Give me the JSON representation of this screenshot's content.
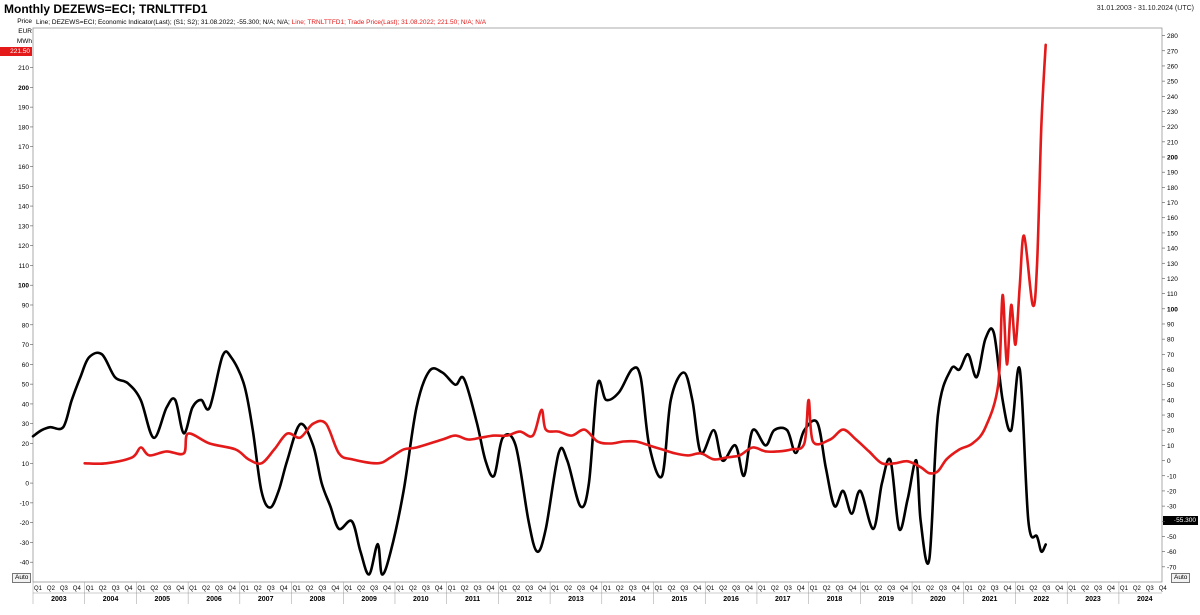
{
  "header": {
    "title": "Monthly DEZEWS=ECI; TRNLTTFD1",
    "date_range": "31.01.2003 - 31.10.2024 (UTC)",
    "legend_black": "Line; DEZEWS=ECI; Economic Indicator(Last); (S1; S2); 31.08.2022; -55.300; N/A; N/A;",
    "legend_red": "Line; TRNLTTFD1; Trade Price(Last); 31.08.2022; 221.50; N/A; N/A"
  },
  "left_axis": {
    "units": [
      "Price",
      "EUR",
      "MWh"
    ],
    "badge": "221.50",
    "badge_color": "#e41a1a",
    "auto_label": "Auto"
  },
  "right_axis": {
    "badge": "-55.300",
    "badge_color": "#000000",
    "auto_label": "Auto"
  },
  "colors": {
    "economic_indicator": "#000000",
    "trade_price": "#e41a1a",
    "grid": "#e6e6e6"
  },
  "chart_data": {
    "type": "line",
    "title": "Monthly DEZEWS=ECI; TRNLTTFD1",
    "grid": false,
    "legend_placement": "top-left",
    "x_range": [
      "2003-01",
      "2024-10"
    ],
    "left_axis_range": [
      -50,
      230
    ],
    "left_axis_ticks": [
      -40,
      -30,
      -20,
      -10,
      0,
      10,
      20,
      30,
      40,
      50,
      60,
      70,
      80,
      90,
      100,
      110,
      120,
      130,
      140,
      150,
      160,
      170,
      180,
      190,
      200,
      210
    ],
    "right_axis_range": [
      -80,
      285
    ],
    "right_axis_ticks": [
      -70,
      -60,
      -50,
      -40,
      -30,
      -20,
      -10,
      0,
      10,
      20,
      30,
      40,
      50,
      60,
      70,
      80,
      90,
      100,
      110,
      120,
      130,
      140,
      150,
      160,
      170,
      180,
      190,
      200,
      210,
      220,
      230,
      240,
      250,
      260,
      270,
      280
    ],
    "year_labels": [
      "2003",
      "2004",
      "2005",
      "2006",
      "2007",
      "2008",
      "2009",
      "2010",
      "2011",
      "2012",
      "2013",
      "2014",
      "2015",
      "2016",
      "2017",
      "2018",
      "2019",
      "2020",
      "2021",
      "2022",
      "2023",
      "2024"
    ],
    "quarter_labels": [
      "Q1",
      "Q2",
      "Q3",
      "Q4"
    ],
    "series": [
      {
        "name": "DEZEWS=ECI",
        "axis": "right",
        "points": [
          [
            "2003-01",
            16
          ],
          [
            "2003-03",
            20
          ],
          [
            "2003-05",
            22
          ],
          [
            "2003-08",
            22
          ],
          [
            "2003-10",
            40
          ],
          [
            "2003-12",
            55
          ],
          [
            "2004-02",
            68
          ],
          [
            "2004-05",
            70
          ],
          [
            "2004-08",
            55
          ],
          [
            "2004-11",
            51
          ],
          [
            "2005-02",
            40
          ],
          [
            "2005-05",
            15
          ],
          [
            "2005-08",
            35
          ],
          [
            "2005-10",
            40
          ],
          [
            "2005-12",
            18
          ],
          [
            "2006-02",
            35
          ],
          [
            "2006-04",
            40
          ],
          [
            "2006-06",
            35
          ],
          [
            "2006-09",
            69
          ],
          [
            "2006-11",
            68
          ],
          [
            "2007-02",
            50
          ],
          [
            "2007-04",
            20
          ],
          [
            "2007-06",
            -20
          ],
          [
            "2007-08",
            -31
          ],
          [
            "2007-10",
            -20
          ],
          [
            "2007-12",
            0
          ],
          [
            "2008-03",
            24
          ],
          [
            "2008-06",
            10
          ],
          [
            "2008-08",
            -15
          ],
          [
            "2008-10",
            -30
          ],
          [
            "2008-12",
            -45
          ],
          [
            "2009-03",
            -40
          ],
          [
            "2009-05",
            -60
          ],
          [
            "2009-07",
            -75
          ],
          [
            "2009-09",
            -55
          ],
          [
            "2009-10",
            -75
          ],
          [
            "2009-12",
            -60
          ],
          [
            "2010-03",
            -20
          ],
          [
            "2010-06",
            35
          ],
          [
            "2010-09",
            59
          ],
          [
            "2010-12",
            58
          ],
          [
            "2011-03",
            50
          ],
          [
            "2011-05",
            54
          ],
          [
            "2011-08",
            25
          ],
          [
            "2011-10",
            0
          ],
          [
            "2011-12",
            -10
          ],
          [
            "2012-02",
            15
          ],
          [
            "2012-05",
            10
          ],
          [
            "2012-08",
            -40
          ],
          [
            "2012-10",
            -60
          ],
          [
            "2012-12",
            -45
          ],
          [
            "2013-03",
            5
          ],
          [
            "2013-05",
            0
          ],
          [
            "2013-08",
            -30
          ],
          [
            "2013-10",
            -15
          ],
          [
            "2013-12",
            50
          ],
          [
            "2014-02",
            40
          ],
          [
            "2014-05",
            45
          ],
          [
            "2014-08",
            60
          ],
          [
            "2014-10",
            55
          ],
          [
            "2014-12",
            10
          ],
          [
            "2015-03",
            -10
          ],
          [
            "2015-05",
            40
          ],
          [
            "2015-08",
            58
          ],
          [
            "2015-10",
            40
          ],
          [
            "2015-12",
            5
          ],
          [
            "2016-03",
            20
          ],
          [
            "2016-05",
            0
          ],
          [
            "2016-08",
            10
          ],
          [
            "2016-10",
            -10
          ],
          [
            "2016-12",
            20
          ],
          [
            "2017-03",
            10
          ],
          [
            "2017-05",
            20
          ],
          [
            "2017-08",
            20
          ],
          [
            "2017-10",
            5
          ],
          [
            "2017-12",
            20
          ],
          [
            "2018-03",
            25
          ],
          [
            "2018-05",
            -5
          ],
          [
            "2018-07",
            -30
          ],
          [
            "2018-09",
            -20
          ],
          [
            "2018-11",
            -35
          ],
          [
            "2019-01",
            -20
          ],
          [
            "2019-04",
            -45
          ],
          [
            "2019-06",
            -15
          ],
          [
            "2019-08",
            0
          ],
          [
            "2019-10",
            -45
          ],
          [
            "2019-12",
            -25
          ],
          [
            "2020-02",
            0
          ],
          [
            "2020-03",
            -40
          ],
          [
            "2020-05",
            -65
          ],
          [
            "2020-07",
            30
          ],
          [
            "2020-10",
            60
          ],
          [
            "2020-12",
            60
          ],
          [
            "2021-02",
            70
          ],
          [
            "2021-04",
            55
          ],
          [
            "2021-06",
            80
          ],
          [
            "2021-08",
            84
          ],
          [
            "2021-10",
            40
          ],
          [
            "2021-12",
            20
          ],
          [
            "2022-02",
            60
          ],
          [
            "2022-04",
            -40
          ],
          [
            "2022-06",
            -50
          ],
          [
            "2022-07",
            -60
          ],
          [
            "2022-08",
            -55.3
          ]
        ]
      },
      {
        "name": "TRNLTTFD1",
        "axis": "left",
        "points": [
          [
            "2004-01",
            10
          ],
          [
            "2004-06",
            10
          ],
          [
            "2004-12",
            13
          ],
          [
            "2005-02",
            18
          ],
          [
            "2005-04",
            14
          ],
          [
            "2005-08",
            16
          ],
          [
            "2005-12",
            15
          ],
          [
            "2006-01",
            25
          ],
          [
            "2006-06",
            20
          ],
          [
            "2006-12",
            17
          ],
          [
            "2007-03",
            12
          ],
          [
            "2007-06",
            10
          ],
          [
            "2007-09",
            17
          ],
          [
            "2007-12",
            25
          ],
          [
            "2008-03",
            23
          ],
          [
            "2008-06",
            30
          ],
          [
            "2008-09",
            30
          ],
          [
            "2008-12",
            15
          ],
          [
            "2009-03",
            12
          ],
          [
            "2009-09",
            10
          ],
          [
            "2009-12",
            13
          ],
          [
            "2010-03",
            17
          ],
          [
            "2010-06",
            18
          ],
          [
            "2010-12",
            22
          ],
          [
            "2011-03",
            24
          ],
          [
            "2011-06",
            22
          ],
          [
            "2011-09",
            23
          ],
          [
            "2011-12",
            24
          ],
          [
            "2012-03",
            24
          ],
          [
            "2012-06",
            26
          ],
          [
            "2012-09",
            24
          ],
          [
            "2012-11",
            37
          ],
          [
            "2012-12",
            27
          ],
          [
            "2013-03",
            26
          ],
          [
            "2013-06",
            24
          ],
          [
            "2013-09",
            27
          ],
          [
            "2013-12",
            21
          ],
          [
            "2014-03",
            20
          ],
          [
            "2014-06",
            21
          ],
          [
            "2014-09",
            21
          ],
          [
            "2014-12",
            19
          ],
          [
            "2015-03",
            17
          ],
          [
            "2015-06",
            15
          ],
          [
            "2015-09",
            14
          ],
          [
            "2015-12",
            15
          ],
          [
            "2016-03",
            12
          ],
          [
            "2016-06",
            13
          ],
          [
            "2016-09",
            14
          ],
          [
            "2016-12",
            18
          ],
          [
            "2017-03",
            16
          ],
          [
            "2017-06",
            16
          ],
          [
            "2017-09",
            17
          ],
          [
            "2017-12",
            20
          ],
          [
            "2018-01",
            42
          ],
          [
            "2018-02",
            21
          ],
          [
            "2018-06",
            22
          ],
          [
            "2018-09",
            27
          ],
          [
            "2018-12",
            22
          ],
          [
            "2019-03",
            16
          ],
          [
            "2019-06",
            10
          ],
          [
            "2019-09",
            10
          ],
          [
            "2019-12",
            11
          ],
          [
            "2020-03",
            8
          ],
          [
            "2020-05",
            5
          ],
          [
            "2020-07",
            6
          ],
          [
            "2020-09",
            12
          ],
          [
            "2020-12",
            17
          ],
          [
            "2021-03",
            20
          ],
          [
            "2021-06",
            28
          ],
          [
            "2021-09",
            50
          ],
          [
            "2021-10",
            95
          ],
          [
            "2021-11",
            60
          ],
          [
            "2021-12",
            90
          ],
          [
            "2022-01",
            70
          ],
          [
            "2022-02",
            100
          ],
          [
            "2022-03",
            125
          ],
          [
            "2022-05",
            90
          ],
          [
            "2022-06",
            110
          ],
          [
            "2022-07",
            180
          ],
          [
            "2022-08",
            221.5
          ]
        ]
      }
    ]
  }
}
